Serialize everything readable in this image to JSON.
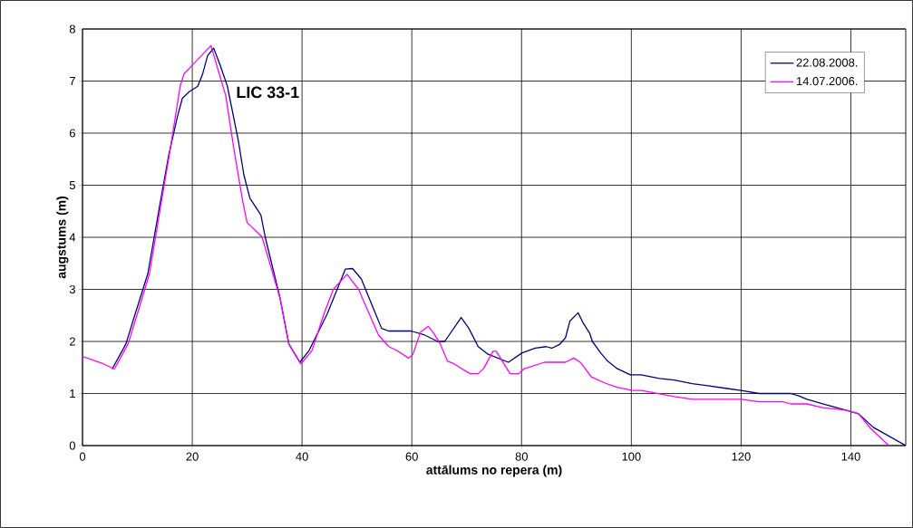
{
  "chart_data": {
    "type": "line",
    "title": "LIC 33-1",
    "xlabel": "attālums no repera (m)",
    "ylabel": "augstums (m)",
    "xlim": [
      0,
      150
    ],
    "ylim": [
      0,
      8
    ],
    "xticks": [
      0,
      20,
      40,
      60,
      80,
      100,
      120,
      140
    ],
    "yticks": [
      0,
      1,
      2,
      3,
      4,
      5,
      6,
      7,
      8
    ],
    "grid": true,
    "legend": "top right",
    "series": [
      {
        "name": "22.08.2008.",
        "color": "#000080",
        "x": [
          5.4,
          7.9,
          9.6,
          11.9,
          14.0,
          15.7,
          17.3,
          18.2,
          19.5,
          21.0,
          21.9,
          22.8,
          23.9,
          25.1,
          26.4,
          28.4,
          29.4,
          30.5,
          32.5,
          33.3,
          36.0,
          37.6,
          39.6,
          41.3,
          44.6,
          47.9,
          49.2,
          50.8,
          53.6,
          54.5,
          55.8,
          59.9,
          62.2,
          64.7,
          66.0,
          69.0,
          70.4,
          72.1,
          73.8,
          77.6,
          80.1,
          82.5,
          84.5,
          85.5,
          86.9,
          88.0,
          88.8,
          90.3,
          91.3,
          92.4,
          92.9,
          94.4,
          95.7,
          97.4,
          99.8,
          101.8,
          105.1,
          107.8,
          111.1,
          113.9,
          117.2,
          120.0,
          123.3,
          129.0,
          130.4,
          132.0,
          135.3,
          139.1,
          141.4,
          144.1,
          150.0
        ],
        "values": [
          1.47,
          1.95,
          2.53,
          3.3,
          4.57,
          5.57,
          6.32,
          6.67,
          6.8,
          6.9,
          7.14,
          7.49,
          7.63,
          7.3,
          6.9,
          5.85,
          5.2,
          4.75,
          4.43,
          4.0,
          2.83,
          1.95,
          1.6,
          1.83,
          2.53,
          3.39,
          3.4,
          3.2,
          2.48,
          2.25,
          2.2,
          2.2,
          2.13,
          2.0,
          2.0,
          2.46,
          2.25,
          1.9,
          1.76,
          1.6,
          1.78,
          1.87,
          1.9,
          1.87,
          1.94,
          2.07,
          2.39,
          2.55,
          2.34,
          2.16,
          2.0,
          1.78,
          1.62,
          1.48,
          1.36,
          1.36,
          1.29,
          1.26,
          1.19,
          1.15,
          1.1,
          1.06,
          1.0,
          1.0,
          0.96,
          0.89,
          0.79,
          0.68,
          0.61,
          0.35,
          0
        ]
      },
      {
        "name": "14.07.2006.",
        "color": "#ff00ff",
        "x": [
          0,
          3.8,
          5.8,
          8.3,
          10.0,
          12.2,
          14.2,
          15.8,
          17.8,
          18.5,
          19.8,
          23.4,
          26.1,
          27.7,
          29.2,
          30.0,
          32.7,
          36.0,
          37.6,
          39.8,
          41.8,
          44.0,
          45.7,
          48.2,
          50.3,
          53.9,
          55.8,
          57.2,
          59.4,
          60.2,
          61.6,
          63.0,
          64.0,
          65.2,
          66.5,
          67.7,
          70.6,
          72.1,
          73.1,
          74.8,
          75.4,
          77.9,
          79.5,
          80.4,
          84.2,
          88.0,
          89.5,
          90.8,
          92.7,
          95.2,
          97.4,
          100.2,
          101.8,
          107.8,
          111.1,
          120.0,
          123.3,
          127.6,
          129.0,
          132.0,
          134.8,
          139.1,
          141.4,
          143.6,
          146.9
        ],
        "values": [
          1.71,
          1.57,
          1.47,
          1.95,
          2.53,
          3.3,
          4.57,
          5.57,
          6.9,
          7.14,
          7.28,
          7.68,
          6.72,
          5.62,
          4.69,
          4.28,
          4.01,
          2.83,
          1.95,
          1.57,
          1.82,
          2.53,
          3.0,
          3.29,
          3.0,
          2.13,
          1.9,
          1.83,
          1.68,
          1.75,
          2.18,
          2.29,
          2.16,
          1.95,
          1.62,
          1.57,
          1.38,
          1.38,
          1.48,
          1.81,
          1.81,
          1.38,
          1.38,
          1.47,
          1.6,
          1.6,
          1.68,
          1.59,
          1.32,
          1.2,
          1.12,
          1.06,
          1.06,
          0.94,
          0.89,
          0.89,
          0.84,
          0.84,
          0.8,
          0.8,
          0.73,
          0.68,
          0.61,
          0.33,
          0
        ]
      }
    ]
  }
}
